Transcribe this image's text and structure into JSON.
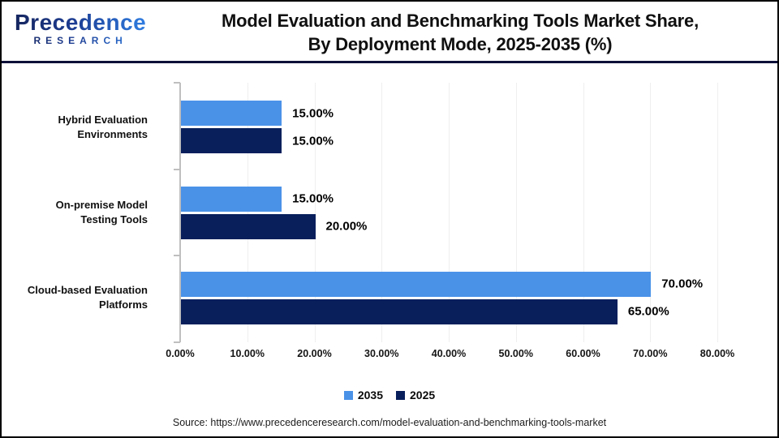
{
  "header": {
    "logo": {
      "name": "Precedence",
      "subtitle": "RESEARCH"
    },
    "title_line1": "Model Evaluation and Benchmarking Tools Market Share,",
    "title_line2": "By Deployment Mode, 2025-2035 (%)"
  },
  "chart_data": {
    "type": "bar",
    "orientation": "horizontal",
    "title": "Model Evaluation and Benchmarking Tools Market Share, By Deployment Mode, 2025-2035 (%)",
    "categories": [
      "Hybrid Evaluation Environments",
      "On-premise Model Testing Tools",
      "Cloud-based Evaluation Platforms"
    ],
    "series": [
      {
        "name": "2035",
        "color": "#4a92e8",
        "values": [
          15.0,
          15.0,
          70.0
        ],
        "data_labels": [
          "15.00%",
          "15.00%",
          "70.00%"
        ]
      },
      {
        "name": "2025",
        "color": "#081f5c",
        "values": [
          15.0,
          20.0,
          65.0
        ],
        "data_labels": [
          "15.00%",
          "20.00%",
          "65.00%"
        ]
      }
    ],
    "xlabel": "",
    "ylabel": "",
    "xlim": [
      0,
      80
    ],
    "x_tick_labels": [
      "0.00%",
      "10.00%",
      "20.00%",
      "30.00%",
      "40.00%",
      "50.00%",
      "60.00%",
      "70.00%",
      "80.00%"
    ],
    "grid": true,
    "legend_position": "bottom"
  },
  "footer": {
    "source": "Source: https://www.precedenceresearch.com/model-evaluation-and-benchmarking-tools-market"
  },
  "colors": {
    "series_2035": "#4a92e8",
    "series_2025": "#081f5c",
    "header_rule": "#0d1038",
    "axis": "#bfbfbf",
    "gridline": "#efefef"
  }
}
